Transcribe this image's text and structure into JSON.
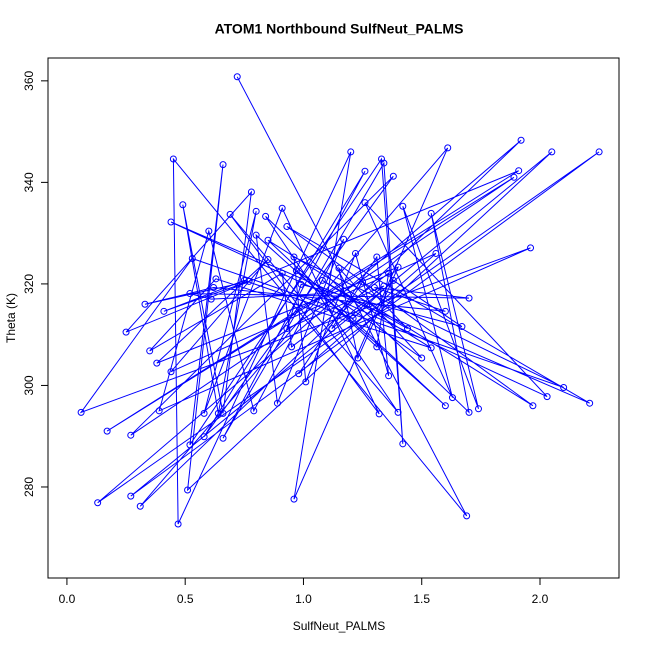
{
  "chart_data": {
    "type": "line-points",
    "title": "ATOM1 Northbound SulfNeut_PALMS",
    "x_label": "SulfNeut_PALMS",
    "y_label": "Theta (K)",
    "color": "#0000ff",
    "series": [
      {
        "x": [
          0.72,
          1.69,
          0.45,
          0.47,
          1.2,
          0.96,
          1.61,
          0.31,
          1.92,
          0.13,
          2.25,
          0.27,
          2.05,
          0.51,
          0.66,
          0.52,
          1.33,
          1.42,
          1.34,
          0.66,
          1.26,
          0.58,
          1.38,
          0.27,
          1.89,
          0.17,
          1.91,
          0.25,
          0.78,
          0.66,
          0.49,
          0.64,
          0.8,
          0.58,
          0.91,
          1.32,
          0.69,
          1.4,
          0.84,
          1.7,
          1.54,
          1.74,
          1.42,
          1.63,
          1.26,
          2.03,
          0.44,
          2.21,
          0.93,
          1.97,
          0.85,
          1.6,
          0.8,
          0.89,
          1.17,
          0.79,
          0.6,
          0.39,
          1.96,
          0.06,
          0.53,
          2.1,
          0.96,
          1.01,
          1.22,
          1.36,
          1.31,
          0.98,
          1.56,
          0.44,
          0.85,
          0.38,
          1.4,
          1.23,
          1.15,
          1.5,
          0.97,
          1.31,
          1.36,
          0.95,
          0.91,
          0.35,
          0.63,
          1.54,
          1.08,
          1.44,
          1.25,
          1.12,
          1.34,
          0.93,
          0.99,
          1.67,
          1.38,
          1.21,
          0.75,
          0.41,
          0.77,
          0.33,
          0.62,
          1.6,
          1.3,
          1.7,
          0.52,
          0.61,
          1.09
        ],
        "values": [
          360.8,
          274.3,
          344.6,
          272.7,
          346,
          277.6,
          346.8,
          276.2,
          348.3,
          276.9,
          346,
          278.2,
          346,
          279.4,
          343.5,
          288.3,
          344.6,
          288.5,
          343.8,
          289.6,
          342.2,
          289.9,
          341.2,
          290.2,
          341,
          291,
          342.3,
          310.5,
          338.1,
          294.5,
          335.6,
          294.5,
          334.3,
          294.5,
          334.9,
          294.4,
          333.7,
          294.7,
          333.3,
          294.7,
          333.9,
          295.4,
          335.3,
          297.6,
          336,
          297.8,
          332.2,
          296.5,
          331.3,
          296,
          328.6,
          296,
          329.6,
          296.5,
          328.8,
          295,
          330.4,
          295,
          327.1,
          294.7,
          325,
          299.6,
          325.3,
          300.7,
          326,
          301.9,
          325.3,
          302.3,
          326,
          302.7,
          324.8,
          304.4,
          323.3,
          305.4,
          323.1,
          305.4,
          322.6,
          307.6,
          322.1,
          307.6,
          322.1,
          306.8,
          321,
          307.4,
          320.7,
          311.2,
          320.4,
          311.2,
          319.6,
          311.2,
          319.9,
          311.6,
          320.7,
          313.2,
          320.7,
          314.6,
          320.5,
          316,
          319.3,
          314.6,
          319.3,
          317.2,
          318.1,
          317,
          318.1
        ]
      }
    ],
    "xlim": [
      -0.08,
      2.334
    ],
    "ylim": [
      262.07,
      364.5
    ],
    "xticks": [
      {
        "value": 0,
        "label": "0.0"
      },
      0.5,
      {
        "value": 1,
        "label": "1.0"
      },
      1.5,
      {
        "value": 2,
        "label": "2.0"
      }
    ],
    "yticks": [
      280,
      300,
      320,
      340,
      360
    ]
  }
}
